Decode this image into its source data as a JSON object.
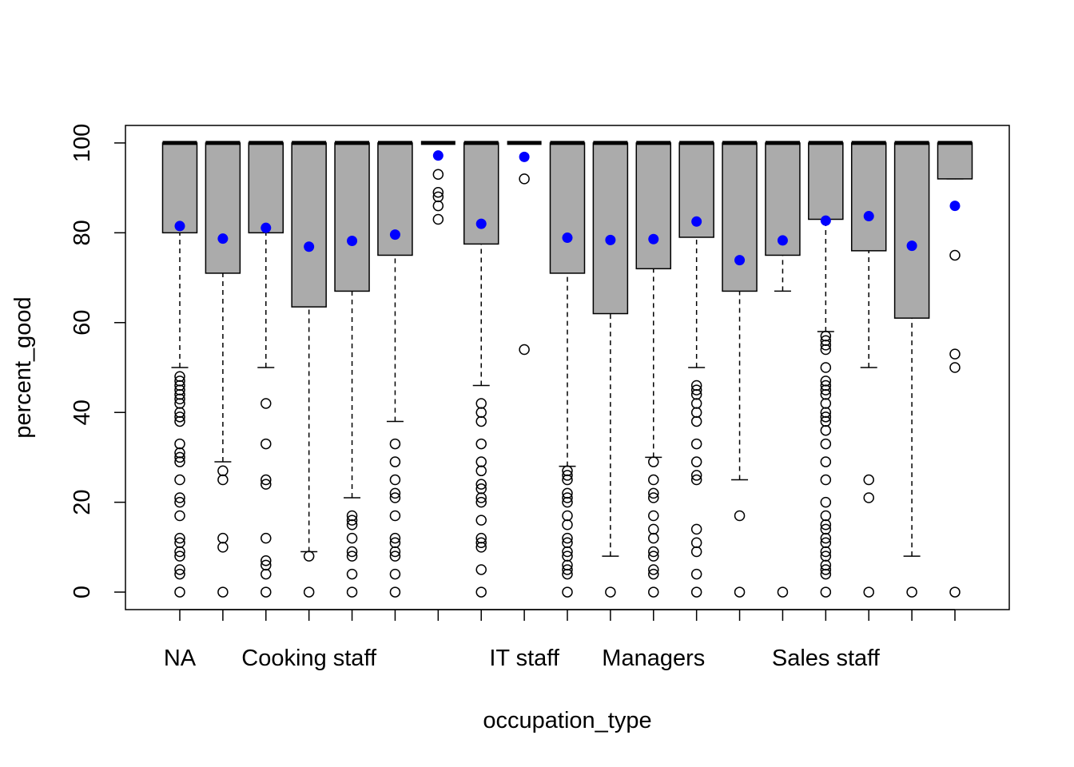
{
  "chart_data": {
    "type": "box",
    "x_label": "occupation_type",
    "y_label": "percent_good",
    "categories": [
      "NA",
      null,
      null,
      "Cooking staff",
      null,
      null,
      null,
      null,
      "IT staff",
      null,
      null,
      "Managers",
      null,
      null,
      null,
      "Sales staff",
      null,
      null,
      null
    ],
    "box_color": "#ababab",
    "mean_color": "#0000ff",
    "ylim": [
      -3.9,
      103.9
    ],
    "yticks": [
      0,
      20,
      40,
      60,
      80,
      100
    ],
    "boxes": [
      {
        "whisker_low": 50,
        "q1": 80,
        "median": 100,
        "q3": 100,
        "whisker_high": 100,
        "mean": 81.5,
        "outliers": [
          48,
          47,
          46,
          45,
          44,
          43,
          42,
          40,
          39,
          38,
          33,
          31,
          30,
          29,
          25,
          21,
          20,
          17,
          12,
          11,
          9,
          8,
          5,
          4,
          0
        ]
      },
      {
        "whisker_low": 29,
        "q1": 71,
        "median": 100,
        "q3": 100,
        "whisker_high": 100,
        "mean": 78.7,
        "outliers": [
          27,
          25,
          12,
          10,
          0
        ]
      },
      {
        "whisker_low": 50,
        "q1": 80,
        "median": 100,
        "q3": 100,
        "whisker_high": 100,
        "mean": 81.1,
        "outliers": [
          42,
          33,
          25,
          24,
          12,
          7,
          6,
          4,
          0
        ]
      },
      {
        "whisker_low": 9,
        "q1": 63.5,
        "median": 100,
        "q3": 100,
        "whisker_high": 100,
        "mean": 76.9,
        "outliers": [
          8,
          0
        ]
      },
      {
        "whisker_low": 21,
        "q1": 67,
        "median": 100,
        "q3": 100,
        "whisker_high": 100,
        "mean": 78.2,
        "outliers": [
          17,
          16,
          15,
          12,
          9,
          8,
          4,
          0
        ]
      },
      {
        "whisker_low": 38,
        "q1": 75,
        "median": 100,
        "q3": 100,
        "whisker_high": 100,
        "mean": 79.6,
        "outliers": [
          33,
          29,
          25,
          22,
          21,
          17,
          12,
          11,
          9,
          8,
          4,
          0
        ]
      },
      {
        "whisker_low": 100,
        "q1": 100,
        "median": 100,
        "q3": 100,
        "whisker_high": 100,
        "mean": 97.2,
        "outliers": [
          93,
          89,
          88,
          86,
          83
        ]
      },
      {
        "whisker_low": 46,
        "q1": 77.5,
        "median": 100,
        "q3": 100,
        "whisker_high": 100,
        "mean": 82,
        "outliers": [
          42,
          40,
          38,
          33,
          29,
          27,
          24,
          23,
          21,
          20,
          16,
          12,
          11,
          10,
          5,
          0
        ]
      },
      {
        "whisker_low": 100,
        "q1": 100,
        "median": 100,
        "q3": 100,
        "whisker_high": 100,
        "mean": 96.9,
        "outliers": [
          92,
          54
        ]
      },
      {
        "whisker_low": 28,
        "q1": 71,
        "median": 100,
        "q3": 100,
        "whisker_high": 100,
        "mean": 78.9,
        "outliers": [
          27,
          26,
          25,
          22,
          21,
          20,
          17,
          15,
          12,
          11,
          9,
          8,
          6,
          5,
          4,
          0
        ]
      },
      {
        "whisker_low": 8,
        "q1": 62,
        "median": 100,
        "q3": 100,
        "whisker_high": 100,
        "mean": 78.4,
        "outliers": [
          0
        ]
      },
      {
        "whisker_low": 30,
        "q1": 72,
        "median": 100,
        "q3": 100,
        "whisker_high": 100,
        "mean": 78.6,
        "outliers": [
          29,
          25,
          22,
          21,
          17,
          14,
          12,
          9,
          8,
          5,
          4,
          0
        ]
      },
      {
        "whisker_low": 50,
        "q1": 79,
        "median": 100,
        "q3": 100,
        "whisker_high": 100,
        "mean": 82.5,
        "outliers": [
          46,
          45,
          44,
          42,
          40,
          38,
          33,
          29,
          26,
          25,
          14,
          11,
          9,
          4,
          0
        ]
      },
      {
        "whisker_low": 25,
        "q1": 67,
        "median": 100,
        "q3": 100,
        "whisker_high": 100,
        "mean": 73.9,
        "outliers": [
          17,
          0
        ]
      },
      {
        "whisker_low": 67,
        "q1": 75,
        "median": 100,
        "q3": 100,
        "whisker_high": 100,
        "mean": 78.3,
        "outliers": [
          0
        ]
      },
      {
        "whisker_low": 58,
        "q1": 83,
        "median": 100,
        "q3": 100,
        "whisker_high": 100,
        "mean": 82.7,
        "outliers": [
          57,
          56,
          55,
          54,
          50,
          47,
          46,
          45,
          44,
          42,
          40,
          39,
          38,
          36,
          33,
          29,
          25,
          20,
          17,
          15,
          14,
          12,
          11,
          9,
          8,
          6,
          5,
          4,
          0
        ]
      },
      {
        "whisker_low": 50,
        "q1": 76,
        "median": 100,
        "q3": 100,
        "whisker_high": 100,
        "mean": 83.7,
        "outliers": [
          25,
          21,
          0
        ]
      },
      {
        "whisker_low": 8,
        "q1": 61,
        "median": 100,
        "q3": 100,
        "whisker_high": 100,
        "mean": 77.1,
        "outliers": [
          0
        ]
      },
      {
        "whisker_low": 92,
        "q1": 92,
        "median": 100,
        "q3": 100,
        "whisker_high": 100,
        "mean": 86,
        "outliers": [
          75,
          53,
          50,
          0
        ]
      }
    ]
  }
}
